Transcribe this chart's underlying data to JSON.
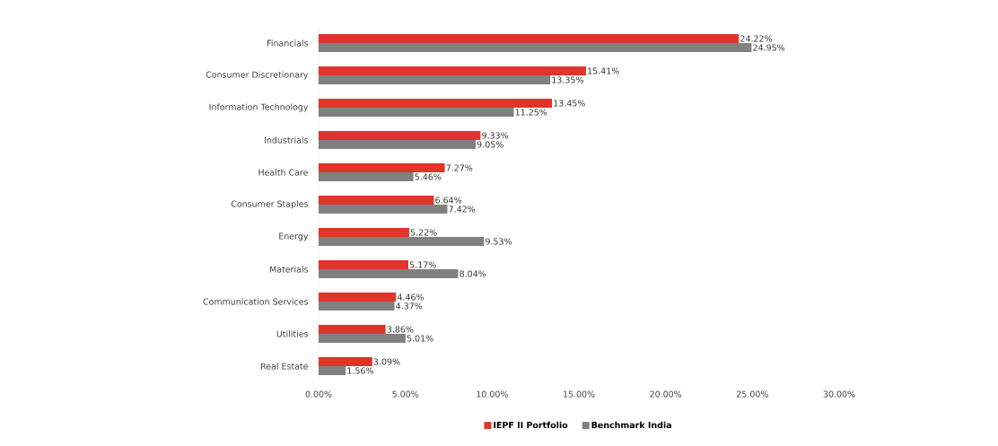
{
  "chart_data": {
    "type": "bar",
    "orientation": "horizontal",
    "categories": [
      "Financials",
      "Consumer Discretionary",
      "Information Technology",
      "Industrials",
      "Health Care",
      "Consumer Staples",
      "Energy",
      "Materials",
      "Communication Services",
      "Utilities",
      "Real Estate"
    ],
    "series": [
      {
        "name": "IEPF II Portfolio",
        "color": "#e0352b",
        "values": [
          24.22,
          15.41,
          13.45,
          9.33,
          7.27,
          6.64,
          5.22,
          5.17,
          4.46,
          3.86,
          3.09
        ],
        "value_labels": [
          "24.22%",
          "15.41%",
          "13.45%",
          "9.33%",
          "7.27%",
          "6.64%",
          "5.22%",
          "5.17%",
          "4.46%",
          "3.86%",
          "3.09%"
        ]
      },
      {
        "name": "Benchmark India",
        "color": "#808080",
        "values": [
          24.95,
          13.35,
          11.25,
          9.05,
          5.46,
          7.42,
          9.53,
          8.04,
          4.37,
          5.01,
          1.56
        ],
        "value_labels": [
          "24.95%",
          "13.35%",
          "11.25%",
          "9.05%",
          "5.46%",
          "7.42%",
          "9.53%",
          "8.04%",
          "4.37%",
          "5.01%",
          "1.56%"
        ]
      }
    ],
    "xlim": [
      0,
      30
    ],
    "xticks": [
      {
        "value": 0,
        "label": "0.00%"
      },
      {
        "value": 5,
        "label": "5.00%"
      },
      {
        "value": 10,
        "label": "10.00%"
      },
      {
        "value": 15,
        "label": "15.00%"
      },
      {
        "value": 20,
        "label": "20.00%"
      },
      {
        "value": 25,
        "label": "25.00%"
      },
      {
        "value": 30,
        "label": "30.00%"
      }
    ],
    "grid": false,
    "legend": "bottom"
  }
}
